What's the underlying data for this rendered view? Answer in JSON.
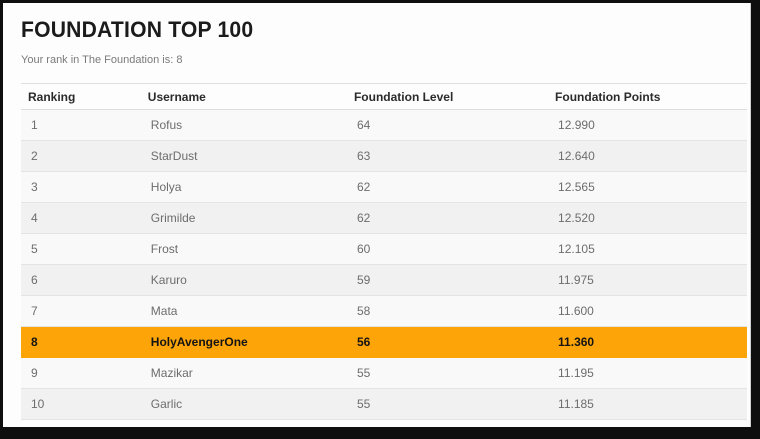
{
  "page": {
    "title": "FOUNDATION TOP 100",
    "subtitle": "Your rank in The Foundation is: 8"
  },
  "table": {
    "columns": [
      "Ranking",
      "Username",
      "Foundation Level",
      "Foundation Points"
    ],
    "rows": [
      {
        "ranking": "1",
        "username": "Rofus",
        "level": "64",
        "points": "12.990",
        "highlighted": false
      },
      {
        "ranking": "2",
        "username": "StarDust",
        "level": "63",
        "points": "12.640",
        "highlighted": false
      },
      {
        "ranking": "3",
        "username": "Holya",
        "level": "62",
        "points": "12.565",
        "highlighted": false
      },
      {
        "ranking": "4",
        "username": "Grimilde",
        "level": "62",
        "points": "12.520",
        "highlighted": false
      },
      {
        "ranking": "5",
        "username": "Frost",
        "level": "60",
        "points": "12.105",
        "highlighted": false
      },
      {
        "ranking": "6",
        "username": "Karuro",
        "level": "59",
        "points": "11.975",
        "highlighted": false
      },
      {
        "ranking": "7",
        "username": "Mata",
        "level": "58",
        "points": "11.600",
        "highlighted": false
      },
      {
        "ranking": "8",
        "username": "HolyAvengerOne",
        "level": "56",
        "points": "11.360",
        "highlighted": true
      },
      {
        "ranking": "9",
        "username": "Mazikar",
        "level": "55",
        "points": "11.195",
        "highlighted": false
      },
      {
        "ranking": "10",
        "username": "Garlic",
        "level": "55",
        "points": "11.185",
        "highlighted": false
      }
    ],
    "highlighted_rank": "8"
  },
  "colors": {
    "highlight": "#fda408",
    "frame": "#0e0e0e"
  }
}
